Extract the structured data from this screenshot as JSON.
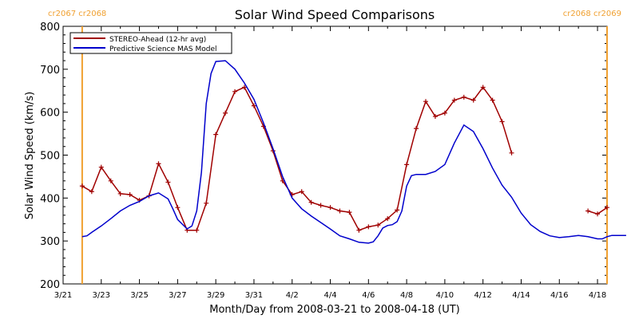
{
  "chart_data": {
    "type": "line",
    "title": "Solar Wind Speed Comparisons",
    "xlabel": "Month/Day from 2008-03-21 to 2008-04-18 (UT)",
    "ylabel": "Solar Wind Speed (km/s)",
    "xlim": [
      "2008-03-21",
      "2008-04-18T12:00"
    ],
    "ylim": [
      200,
      800
    ],
    "yticks": [
      200,
      300,
      400,
      500,
      600,
      700,
      800
    ],
    "xtick_labels": [
      "3/21",
      "3/23",
      "3/25",
      "3/27",
      "3/29",
      "3/31",
      "4/2",
      "4/4",
      "4/6",
      "4/8",
      "4/10",
      "4/12",
      "4/14",
      "4/16",
      "4/18"
    ],
    "xtick_dates": [
      "2008-03-21",
      "2008-03-23",
      "2008-03-25",
      "2008-03-27",
      "2008-03-29",
      "2008-03-31",
      "2008-04-02",
      "2008-04-04",
      "2008-04-06",
      "2008-04-08",
      "2008-04-10",
      "2008-04-12",
      "2008-04-14",
      "2008-04-16",
      "2008-04-18"
    ],
    "legend_position": "top-left",
    "carrington_markers": [
      {
        "date": "2008-03-22",
        "labels": [
          "cr2067",
          "cr2068"
        ],
        "color": "#f0a030"
      },
      {
        "date": "2008-04-18T12:00",
        "labels": [
          "cr2068",
          "cr2069"
        ],
        "color": "#f0a030"
      }
    ],
    "series": [
      {
        "name": "STEREO-Ahead (12-hr avg)",
        "color": "#a00000",
        "marker": "plus",
        "segments": [
          [
            [
              "2008-03-22T00:00",
              428
            ],
            [
              "2008-03-22T12:00",
              415
            ],
            [
              "2008-03-23T00:00",
              472
            ],
            [
              "2008-03-23T12:00",
              440
            ],
            [
              "2008-03-24T00:00",
              410
            ],
            [
              "2008-03-24T12:00",
              408
            ],
            [
              "2008-03-25T00:00",
              395
            ],
            [
              "2008-03-25T12:00",
              405
            ],
            [
              "2008-03-26T00:00",
              480
            ],
            [
              "2008-03-26T12:00",
              437
            ],
            [
              "2008-03-27T00:00",
              378
            ],
            [
              "2008-03-27T12:00",
              325
            ],
            [
              "2008-03-28T00:00",
              325
            ],
            [
              "2008-03-28T12:00",
              388
            ],
            [
              "2008-03-29T00:00",
              548
            ],
            [
              "2008-03-29T12:00",
              598
            ],
            [
              "2008-03-30T00:00",
              648
            ],
            [
              "2008-03-30T12:00",
              658
            ],
            [
              "2008-03-31T00:00",
              615
            ],
            [
              "2008-03-31T12:00",
              567
            ],
            [
              "2008-04-01T00:00",
              510
            ],
            [
              "2008-04-01T12:00",
              440
            ],
            [
              "2008-04-02T00:00",
              408
            ],
            [
              "2008-04-02T12:00",
              415
            ],
            [
              "2008-04-03T00:00",
              390
            ],
            [
              "2008-04-03T12:00",
              383
            ],
            [
              "2008-04-04T00:00",
              378
            ],
            [
              "2008-04-04T12:00",
              370
            ],
            [
              "2008-04-05T00:00",
              367
            ],
            [
              "2008-04-05T12:00",
              325
            ],
            [
              "2008-04-06T00:00",
              333
            ],
            [
              "2008-04-06T12:00",
              337
            ],
            [
              "2008-04-07T00:00",
              352
            ],
            [
              "2008-04-07T12:00",
              372
            ],
            [
              "2008-04-08T00:00",
              478
            ],
            [
              "2008-04-08T12:00",
              562
            ],
            [
              "2008-04-09T00:00",
              625
            ],
            [
              "2008-04-09T12:00",
              590
            ],
            [
              "2008-04-10T00:00",
              598
            ],
            [
              "2008-04-10T12:00",
              628
            ],
            [
              "2008-04-11T00:00",
              635
            ],
            [
              "2008-04-11T12:00",
              628
            ],
            [
              "2008-04-12T00:00",
              658
            ],
            [
              "2008-04-12T12:00",
              628
            ],
            [
              "2008-04-13T00:00",
              578
            ],
            [
              "2008-04-13T12:00",
              505
            ]
          ],
          [
            [
              "2008-04-17T12:00",
              370
            ],
            [
              "2008-04-18T00:00",
              363
            ],
            [
              "2008-04-18T12:00",
              378
            ]
          ]
        ]
      },
      {
        "name": "Predictive Science MAS Model",
        "color": "#0000cc",
        "marker": "none",
        "segments": [
          [
            [
              "2008-03-22T00:00",
              310
            ],
            [
              "2008-03-22T06:00",
              312
            ],
            [
              "2008-03-22T12:00",
              320
            ],
            [
              "2008-03-23T00:00",
              335
            ],
            [
              "2008-03-23T12:00",
              352
            ],
            [
              "2008-03-24T00:00",
              370
            ],
            [
              "2008-03-24T12:00",
              383
            ],
            [
              "2008-03-25T00:00",
              392
            ],
            [
              "2008-03-25T12:00",
              405
            ],
            [
              "2008-03-26T00:00",
              412
            ],
            [
              "2008-03-26T12:00",
              398
            ],
            [
              "2008-03-26T18:00",
              375
            ],
            [
              "2008-03-27T00:00",
              350
            ],
            [
              "2008-03-27T12:00",
              328
            ],
            [
              "2008-03-27T18:00",
              335
            ],
            [
              "2008-03-28T00:00",
              370
            ],
            [
              "2008-03-28T06:00",
              460
            ],
            [
              "2008-03-28T12:00",
              620
            ],
            [
              "2008-03-28T18:00",
              690
            ],
            [
              "2008-03-29T00:00",
              718
            ],
            [
              "2008-03-29T12:00",
              720
            ],
            [
              "2008-03-30T00:00",
              700
            ],
            [
              "2008-03-30T12:00",
              668
            ],
            [
              "2008-03-31T00:00",
              630
            ],
            [
              "2008-03-31T12:00",
              575
            ],
            [
              "2008-04-01T00:00",
              515
            ],
            [
              "2008-04-01T12:00",
              450
            ],
            [
              "2008-04-02T00:00",
              400
            ],
            [
              "2008-04-02T12:00",
              375
            ],
            [
              "2008-04-03T00:00",
              358
            ],
            [
              "2008-04-03T12:00",
              343
            ],
            [
              "2008-04-04T00:00",
              328
            ],
            [
              "2008-04-04T12:00",
              312
            ],
            [
              "2008-04-05T00:00",
              305
            ],
            [
              "2008-04-05T12:00",
              297
            ],
            [
              "2008-04-06T00:00",
              295
            ],
            [
              "2008-04-06T06:00",
              298
            ],
            [
              "2008-04-06T12:00",
              312
            ],
            [
              "2008-04-06T18:00",
              330
            ],
            [
              "2008-04-07T00:00",
              336
            ],
            [
              "2008-04-07T06:00",
              338
            ],
            [
              "2008-04-07T12:00",
              345
            ],
            [
              "2008-04-07T18:00",
              370
            ],
            [
              "2008-04-08T00:00",
              428
            ],
            [
              "2008-04-08T06:00",
              452
            ],
            [
              "2008-04-08T12:00",
              455
            ],
            [
              "2008-04-09T00:00",
              455
            ],
            [
              "2008-04-09T12:00",
              462
            ],
            [
              "2008-04-10T00:00",
              478
            ],
            [
              "2008-04-10T12:00",
              528
            ],
            [
              "2008-04-11T00:00",
              570
            ],
            [
              "2008-04-11T12:00",
              555
            ],
            [
              "2008-04-12T00:00",
              515
            ],
            [
              "2008-04-12T12:00",
              470
            ],
            [
              "2008-04-13T00:00",
              430
            ],
            [
              "2008-04-13T12:00",
              402
            ],
            [
              "2008-04-14T00:00",
              365
            ],
            [
              "2008-04-14T12:00",
              338
            ],
            [
              "2008-04-15T00:00",
              322
            ],
            [
              "2008-04-15T12:00",
              312
            ],
            [
              "2008-04-16T00:00",
              308
            ],
            [
              "2008-04-16T12:00",
              310
            ],
            [
              "2008-04-17T00:00",
              313
            ],
            [
              "2008-04-17T12:00",
              310
            ],
            [
              "2008-04-18T00:00",
              305
            ],
            [
              "2008-04-18T06:00",
              305
            ],
            [
              "2008-04-18T12:00",
              310
            ],
            [
              "2008-04-18T18:00",
              313
            ],
            [
              "2008-04-19T00:00",
              313
            ],
            [
              "2008-04-19T12:00",
              313
            ]
          ]
        ]
      }
    ]
  }
}
